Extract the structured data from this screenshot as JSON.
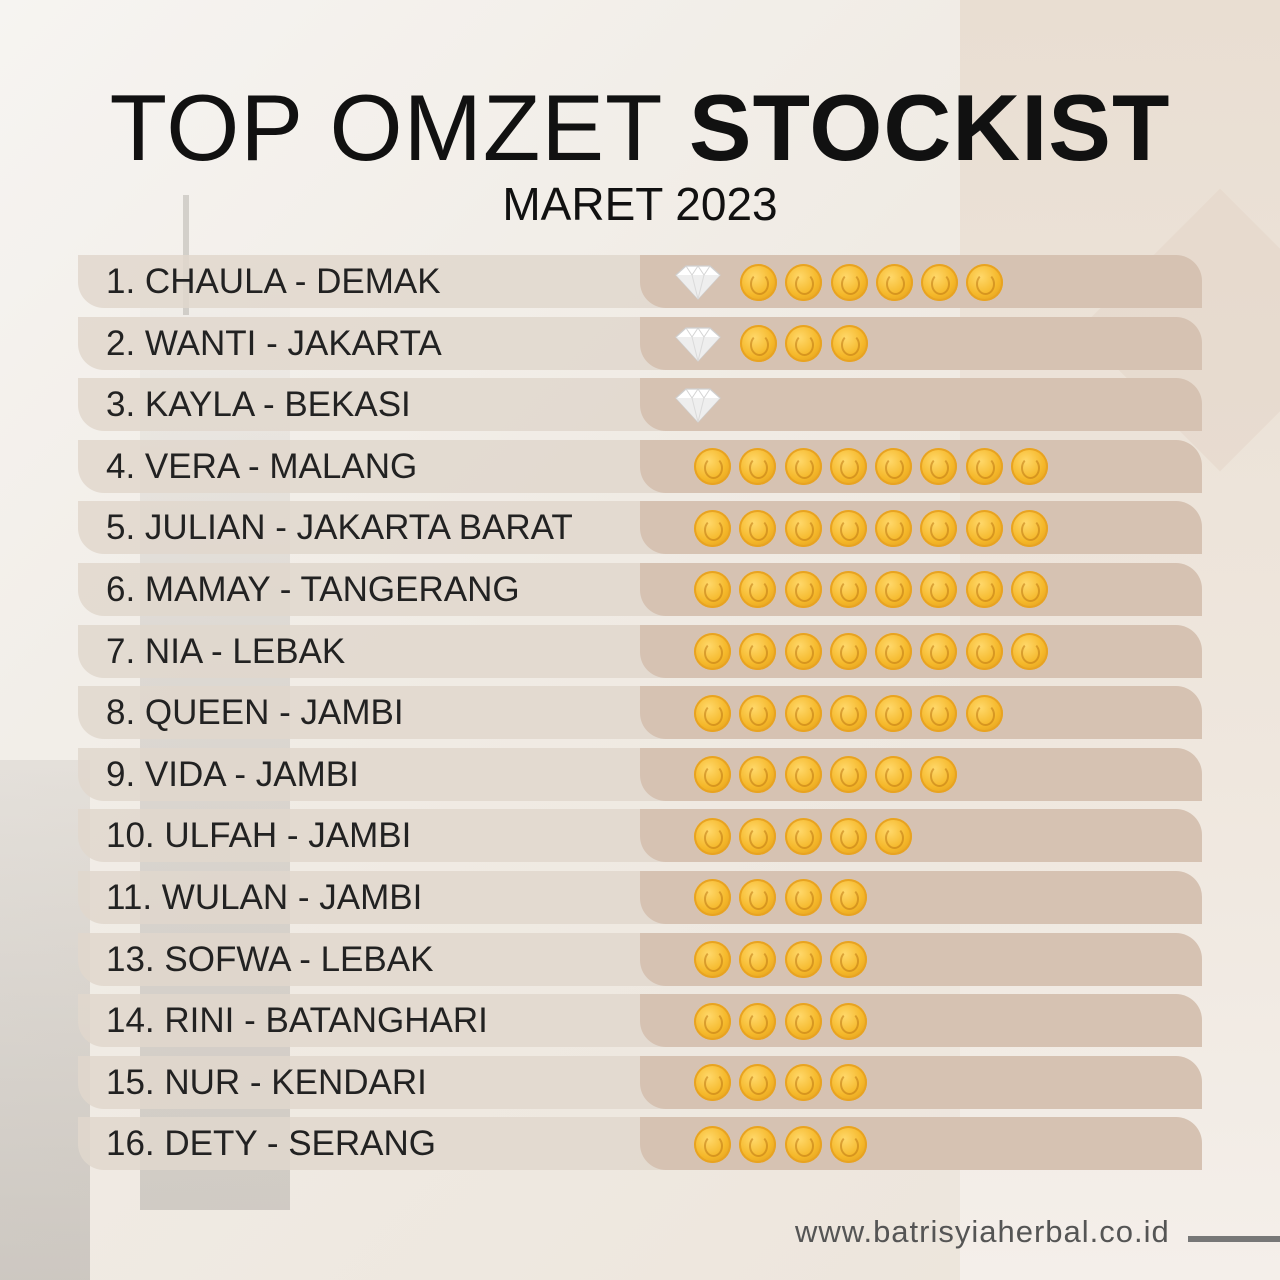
{
  "header": {
    "title_light": "TOP OMZET ",
    "title_bold": "STOCKIST",
    "subtitle": "MARET 2023"
  },
  "rows": [
    {
      "label": "1. CHAULA - DEMAK",
      "diamonds": 1,
      "coins": 6
    },
    {
      "label": "2. WANTI - JAKARTA",
      "diamonds": 1,
      "coins": 3
    },
    {
      "label": "3. KAYLA - BEKASI",
      "diamonds": 1,
      "coins": 0
    },
    {
      "label": "4. VERA - MALANG",
      "diamonds": 0,
      "coins": 8
    },
    {
      "label": "5. JULIAN - JAKARTA BARAT",
      "diamonds": 0,
      "coins": 8
    },
    {
      "label": "6. MAMAY - TANGERANG",
      "diamonds": 0,
      "coins": 8
    },
    {
      "label": "7. NIA - LEBAK",
      "diamonds": 0,
      "coins": 8
    },
    {
      "label": "8. QUEEN - JAMBI",
      "diamonds": 0,
      "coins": 7
    },
    {
      "label": "9. VIDA - JAMBI",
      "diamonds": 0,
      "coins": 6
    },
    {
      "label": "10. ULFAH - JAMBI",
      "diamonds": 0,
      "coins": 5
    },
    {
      "label": "11. WULAN - JAMBI",
      "diamonds": 0,
      "coins": 4
    },
    {
      "label": "13. SOFWA - LEBAK",
      "diamonds": 0,
      "coins": 4
    },
    {
      "label": "14. RINI - BATANGHARI",
      "diamonds": 0,
      "coins": 4
    },
    {
      "label": "15. NUR - KENDARI",
      "diamonds": 0,
      "coins": 4
    },
    {
      "label": "16. DETY - SERANG",
      "diamonds": 0,
      "coins": 4
    }
  ],
  "footer": {
    "website": "www.batrisyiaherbal.co.id"
  },
  "icons": {
    "coin": "gold-coin-icon",
    "diamond": "diamond-icon"
  }
}
